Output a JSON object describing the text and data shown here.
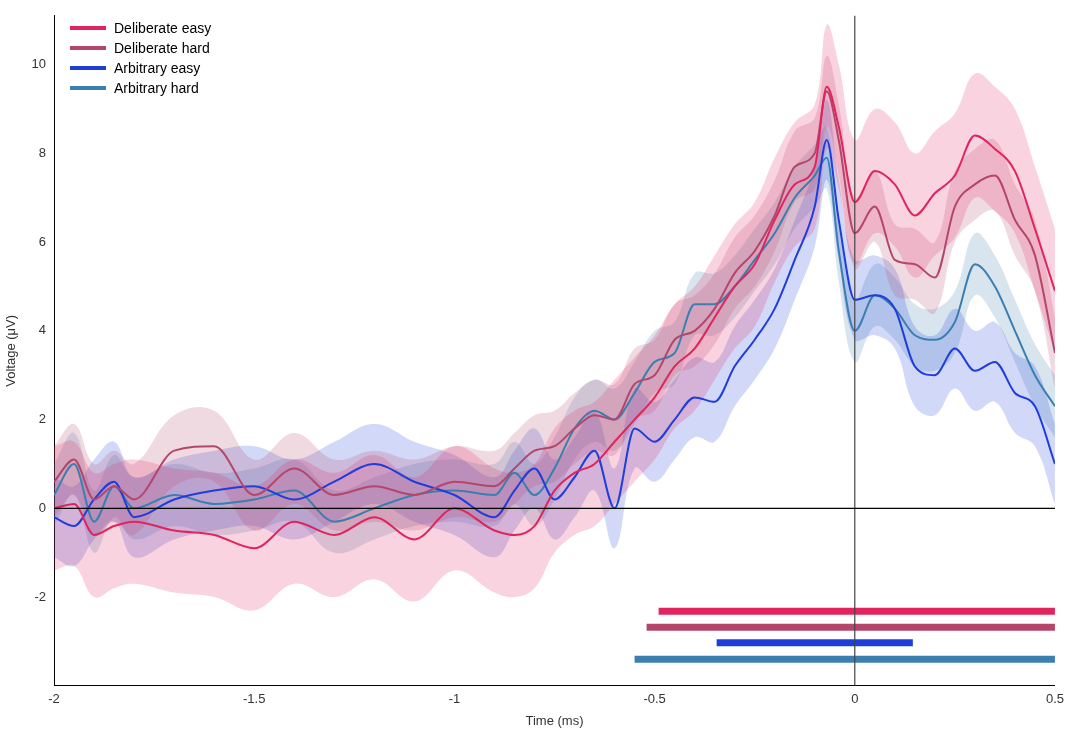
{
  "chart_data": {
    "type": "line",
    "xlabel": "Time (ms)",
    "ylabel": "Voltage (μV)",
    "xlim": [
      -2,
      0.5
    ],
    "ylim": [
      -4,
      11.1
    ],
    "xticks": [
      -2,
      -1.5,
      -1,
      -0.5,
      0,
      0.5
    ],
    "yticks": [
      -2,
      0,
      2,
      4,
      6,
      8,
      10
    ],
    "grid": false,
    "legend": "top left",
    "marker": "none",
    "line_style": "solid",
    "x": [
      -2,
      -1.95,
      -1.9,
      -1.85,
      -1.8,
      -1.7,
      -1.6,
      -1.5,
      -1.4,
      -1.3,
      -1.2,
      -1.1,
      -1,
      -0.9,
      -0.85,
      -0.8,
      -0.75,
      -0.7,
      -0.65,
      -0.6,
      -0.55,
      -0.5,
      -0.45,
      -0.4,
      -0.35,
      -0.3,
      -0.25,
      -0.2,
      -0.15,
      -0.1,
      -0.07,
      -0.04,
      0,
      0.05,
      0.1,
      0.15,
      0.2,
      0.25,
      0.3,
      0.35,
      0.4,
      0.45,
      0.5
    ],
    "series": [
      {
        "name": "Deliberate easy",
        "color": "#e0245e",
        "values": [
          0,
          0.1,
          -0.6,
          -0.4,
          -0.3,
          -0.5,
          -0.6,
          -0.9,
          -0.3,
          -0.6,
          -0.2,
          -0.7,
          0,
          -0.5,
          -0.6,
          -0.4,
          0.4,
          0.8,
          1.0,
          1.5,
          2.0,
          2.5,
          3.2,
          3.6,
          4.3,
          5.0,
          5.5,
          6.5,
          7.3,
          7.7,
          9.5,
          8.6,
          6.9,
          7.6,
          7.3,
          6.6,
          7.1,
          7.5,
          8.4,
          8.1,
          7.6,
          6.3,
          4.9
        ],
        "upper": [
          1.4,
          1.5,
          0.8,
          1.0,
          1.1,
          0.9,
          0.8,
          0.5,
          1.1,
          0.8,
          1.2,
          0.7,
          1.4,
          0.9,
          0.8,
          1.0,
          1.8,
          2.2,
          2.4,
          2.9,
          3.4,
          3.9,
          4.6,
          5.0,
          5.7,
          6.4,
          6.9,
          7.9,
          8.7,
          9.1,
          10.9,
          10.0,
          8.3,
          9.0,
          8.7,
          8.0,
          8.5,
          8.9,
          9.8,
          9.5,
          9.0,
          7.7,
          6.3
        ],
        "lower": [
          -1.4,
          -1.3,
          -2.0,
          -1.8,
          -1.7,
          -1.9,
          -2.0,
          -2.3,
          -1.7,
          -2.0,
          -1.6,
          -2.1,
          -1.4,
          -1.9,
          -2.0,
          -1.8,
          -1.0,
          -0.6,
          -0.4,
          0.1,
          0.6,
          1.1,
          1.8,
          2.2,
          2.9,
          3.6,
          4.1,
          5.1,
          5.9,
          6.3,
          8.1,
          7.2,
          5.5,
          6.2,
          5.9,
          5.2,
          5.7,
          6.1,
          7.0,
          6.7,
          6.2,
          4.9,
          3.5
        ]
      },
      {
        "name": "Deliberate hard",
        "color": "#b5466b",
        "values": [
          0.6,
          1.1,
          0.2,
          0.5,
          0.2,
          1.3,
          1.4,
          0.3,
          0.9,
          0.3,
          0.5,
          0.3,
          0.6,
          0.5,
          0.9,
          1.3,
          1.4,
          1.8,
          2.1,
          2.0,
          2.8,
          3.0,
          3.8,
          4.0,
          4.5,
          5.3,
          5.8,
          6.6,
          7.7,
          8.0,
          9.4,
          8.3,
          6.2,
          6.8,
          5.6,
          5.5,
          5.2,
          6.8,
          7.3,
          7.5,
          6.5,
          5.7,
          3.5
        ],
        "upper": [
          1.4,
          1.9,
          1.0,
          1.3,
          1.0,
          2.1,
          2.2,
          1.1,
          1.7,
          1.1,
          1.3,
          1.1,
          1.4,
          1.3,
          1.7,
          2.1,
          2.2,
          2.6,
          2.9,
          2.8,
          3.6,
          3.8,
          4.6,
          4.8,
          5.3,
          6.1,
          6.6,
          7.4,
          8.5,
          8.8,
          10.2,
          9.1,
          7.0,
          7.6,
          6.4,
          6.3,
          6.0,
          7.6,
          8.1,
          8.3,
          7.3,
          6.5,
          4.3
        ],
        "lower": [
          -0.2,
          0.3,
          -0.6,
          -0.3,
          -0.6,
          0.5,
          0.6,
          -0.5,
          0.1,
          -0.5,
          -0.3,
          -0.5,
          -0.2,
          -0.3,
          0.1,
          0.5,
          0.6,
          1.0,
          1.3,
          1.2,
          2.0,
          2.2,
          3.0,
          3.2,
          3.7,
          4.5,
          5.0,
          5.8,
          6.9,
          7.2,
          8.6,
          7.5,
          5.4,
          6.0,
          4.8,
          4.7,
          4.4,
          6.0,
          6.5,
          6.7,
          5.7,
          4.9,
          2.7
        ]
      },
      {
        "name": "Arbitrary easy",
        "color": "#1f3ddb",
        "values": [
          -0.2,
          -0.4,
          0.2,
          0.6,
          -0.2,
          0.2,
          0.4,
          0.5,
          0.2,
          0.6,
          1.0,
          0.6,
          0.3,
          -0.2,
          0.4,
          0.9,
          0.2,
          0.7,
          1.3,
          0.0,
          1.8,
          1.5,
          2.0,
          2.5,
          2.4,
          3.2,
          3.8,
          4.5,
          5.6,
          6.8,
          8.3,
          6.5,
          4.7,
          4.8,
          4.5,
          3.2,
          3.0,
          3.6,
          3.1,
          3.3,
          2.6,
          2.3,
          1.0
        ],
        "upper": [
          0.7,
          0.5,
          1.1,
          1.5,
          0.7,
          1.1,
          1.3,
          1.4,
          1.1,
          1.5,
          1.9,
          1.5,
          1.2,
          0.7,
          1.3,
          1.8,
          1.1,
          1.6,
          2.2,
          0.9,
          2.7,
          2.4,
          2.9,
          3.4,
          3.3,
          4.1,
          4.7,
          5.4,
          6.5,
          7.7,
          9.2,
          7.4,
          5.6,
          5.7,
          5.4,
          4.1,
          3.9,
          4.5,
          4.0,
          4.2,
          3.5,
          3.2,
          1.9
        ],
        "lower": [
          -1.1,
          -1.3,
          -0.7,
          -0.3,
          -1.1,
          -0.7,
          -0.5,
          -0.4,
          -0.7,
          -0.3,
          0.1,
          -0.3,
          -0.6,
          -1.1,
          -0.5,
          0.0,
          -0.7,
          -0.2,
          0.4,
          -0.9,
          0.9,
          0.6,
          1.1,
          1.6,
          1.5,
          2.3,
          2.9,
          3.6,
          4.7,
          5.9,
          7.4,
          5.6,
          3.8,
          3.9,
          3.6,
          2.3,
          2.1,
          2.7,
          2.2,
          2.4,
          1.7,
          1.4,
          0.1
        ]
      },
      {
        "name": "Arbitrary hard",
        "color": "#3a7fb0",
        "values": [
          0.3,
          1.0,
          -0.3,
          0.5,
          0.0,
          0.3,
          0.1,
          0.2,
          0.4,
          -0.3,
          0.0,
          0.3,
          0.4,
          0.3,
          0.8,
          0.3,
          0.9,
          1.8,
          2.2,
          2.0,
          2.6,
          3.3,
          3.5,
          4.6,
          4.6,
          5.0,
          5.6,
          6.2,
          7.0,
          7.5,
          7.9,
          5.8,
          4.0,
          4.8,
          4.5,
          3.9,
          3.8,
          4.2,
          5.5,
          5.0,
          4.0,
          3.0,
          2.3
        ],
        "upper": [
          1.0,
          1.7,
          0.4,
          1.2,
          0.7,
          1.0,
          0.8,
          0.9,
          1.1,
          0.4,
          0.7,
          1.0,
          1.1,
          1.0,
          1.5,
          1.0,
          1.6,
          2.5,
          2.9,
          2.7,
          3.3,
          4.0,
          4.2,
          5.3,
          5.3,
          5.7,
          6.3,
          6.9,
          7.7,
          8.2,
          8.6,
          6.5,
          4.7,
          5.5,
          5.2,
          4.6,
          4.5,
          4.9,
          6.2,
          5.7,
          4.7,
          3.7,
          3.0
        ],
        "lower": [
          -0.4,
          0.3,
          -1.0,
          -0.2,
          -0.7,
          -0.4,
          -0.6,
          -0.5,
          -0.3,
          -1.0,
          -0.7,
          -0.4,
          -0.3,
          -0.4,
          0.1,
          -0.4,
          0.2,
          1.1,
          1.5,
          1.3,
          1.9,
          2.6,
          2.8,
          3.9,
          3.9,
          4.3,
          4.9,
          5.5,
          6.3,
          6.8,
          7.2,
          5.1,
          3.3,
          4.1,
          3.8,
          3.2,
          3.1,
          3.5,
          4.8,
          4.3,
          3.3,
          2.3,
          1.6
        ]
      },
      {
        "color": "#e0245e",
        "x": [
          -0.49,
          0.5
        ],
        "values": [
          -2.32,
          -2.32
        ]
      },
      {
        "color": "#b5466b",
        "x": [
          -0.52,
          0.5
        ],
        "values": [
          -2.68,
          -2.68
        ]
      },
      {
        "color": "#1f3ddb",
        "x": [
          -0.345,
          0.145
        ],
        "values": [
          -3.03,
          -3.03
        ]
      },
      {
        "color": "#3a7fb0",
        "x": [
          -0.55,
          0.5
        ],
        "values": [
          -3.4,
          -3.4
        ]
      }
    ],
    "ref_lines": [
      {
        "axis": "x",
        "value": 0,
        "color": "#444444"
      },
      {
        "axis": "y",
        "value": 0,
        "color": "#000000"
      }
    ]
  }
}
